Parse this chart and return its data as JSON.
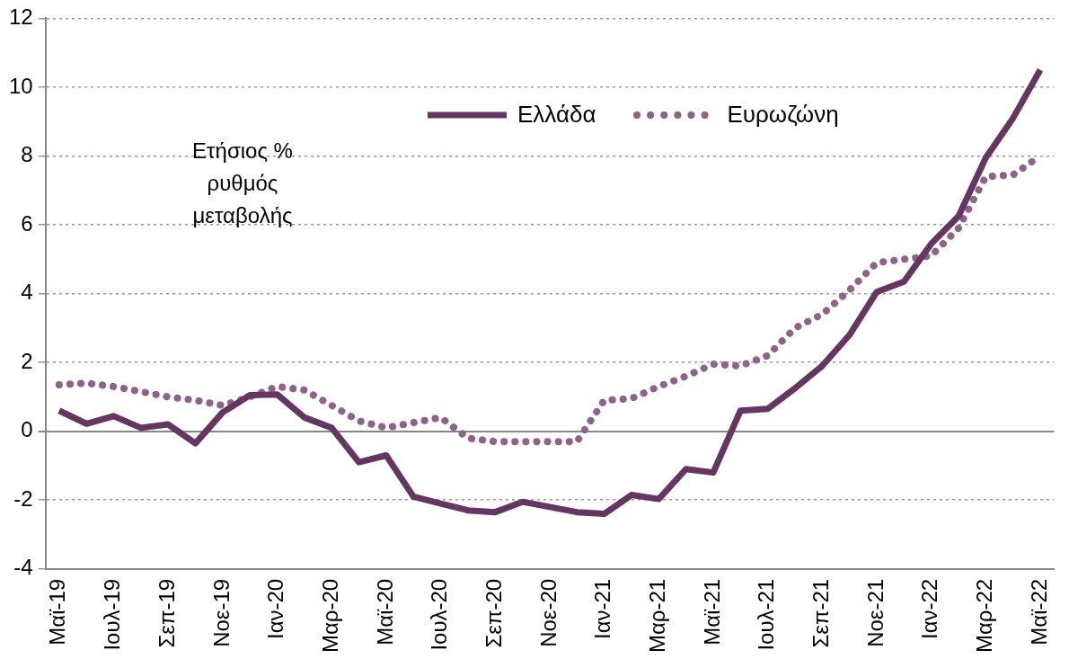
{
  "chart_data": {
    "type": "line",
    "categories": [
      "Μαϊ-19",
      null,
      "Ιουλ-19",
      null,
      "Σεπ-19",
      null,
      "Νοε-19",
      null,
      "Ιαν-20",
      null,
      "Μαρ-20",
      null,
      "Μαϊ-20",
      null,
      "Ιουλ-20",
      null,
      "Σεπ-20",
      null,
      "Νοε-20",
      null,
      "Ιαν-21",
      null,
      "Μαρ-21",
      null,
      "Μαϊ-21",
      null,
      "Ιουλ-21",
      null,
      "Σεπ-21",
      null,
      "Νοε-21",
      null,
      "Ιαν-22",
      null,
      "Μαρ-22",
      null,
      "Μαϊ-22"
    ],
    "series": [
      {
        "name": "Ελλάδα",
        "color": "#663663",
        "line_style": "solid",
        "values": [
          0.6,
          0.22,
          0.44,
          0.1,
          0.2,
          -0.35,
          0.55,
          1.05,
          1.07,
          0.4,
          0.1,
          -0.9,
          -0.7,
          -1.9,
          -2.1,
          -2.3,
          -2.35,
          -2.05,
          -2.2,
          -2.35,
          -2.4,
          -1.85,
          -1.97,
          -1.1,
          -1.2,
          0.6,
          0.65,
          1.25,
          1.9,
          2.8,
          4.05,
          4.35,
          5.45,
          6.25,
          7.95,
          9.1,
          10.5
        ]
      },
      {
        "name": "Ευρωζώνη",
        "color": "#8e6389",
        "line_style": "dotted",
        "values": [
          1.35,
          1.4,
          1.3,
          1.15,
          1.0,
          0.9,
          0.75,
          1.0,
          1.3,
          1.2,
          0.75,
          0.3,
          0.1,
          0.25,
          0.4,
          -0.2,
          -0.3,
          -0.3,
          -0.3,
          -0.3,
          0.9,
          0.95,
          1.3,
          1.6,
          1.95,
          1.9,
          2.2,
          3.0,
          3.4,
          4.1,
          4.9,
          5.0,
          5.1,
          5.9,
          7.4,
          7.45,
          8.0
        ]
      }
    ],
    "ylim": [
      -4,
      12
    ],
    "yticks": [
      -4,
      -2,
      0,
      2,
      4,
      6,
      8,
      10,
      12
    ],
    "grid": "y",
    "legend": "top",
    "marker": "none",
    "annotations": [
      "Ετήσιος % ρυθμός μεταβολής"
    ]
  }
}
